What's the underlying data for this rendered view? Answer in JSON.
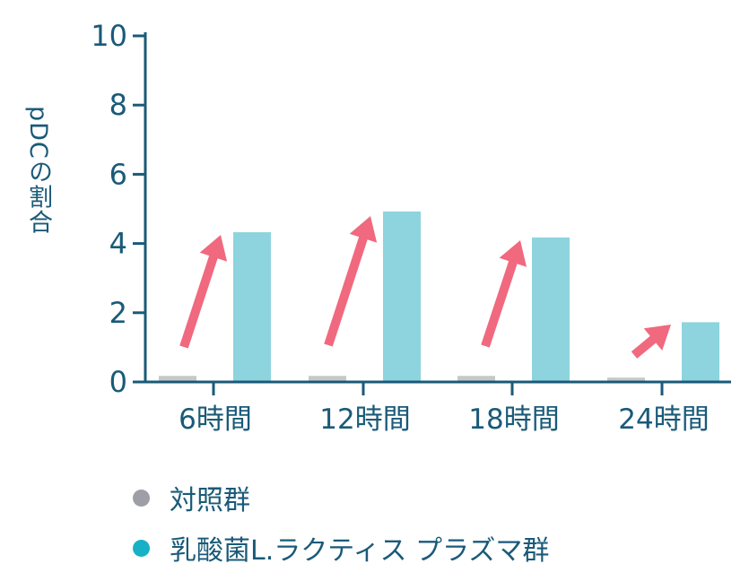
{
  "chart_data": {
    "type": "bar",
    "title": "",
    "xlabel": "",
    "ylabel": "pDCの割合",
    "ylim": [
      0,
      10
    ],
    "yticks": [
      0,
      2,
      4,
      6,
      8,
      10
    ],
    "grid": false,
    "legend_position": "bottom-left",
    "categories": [
      "6時間",
      "12時間",
      "18時間",
      "24時間"
    ],
    "series": [
      {
        "name": "対照群",
        "color": "#c8c8c8",
        "legend_color": "#9e9ea6",
        "values": [
          0.15,
          0.15,
          0.15,
          0.1
        ]
      },
      {
        "name": "乳酸菌L.ラクティス プラズマ群",
        "color": "#8dd4de",
        "legend_color": "#18b0c4",
        "values": [
          4.3,
          4.9,
          4.15,
          1.7
        ]
      }
    ],
    "annotations": [
      {
        "type": "arrow",
        "color": "#f0697e",
        "category": "6時間",
        "from": 1.0,
        "to": 4.3
      },
      {
        "type": "arrow",
        "color": "#f0697e",
        "category": "12時間",
        "from": 1.0,
        "to": 4.9
      },
      {
        "type": "arrow",
        "color": "#f0697e",
        "category": "18時間",
        "from": 1.0,
        "to": 4.2
      },
      {
        "type": "arrow",
        "color": "#f0697e",
        "category": "24時間",
        "from": 1.0,
        "to": 1.6
      }
    ]
  },
  "colors": {
    "axis": "#1a5a78",
    "arrow": "#f0697e"
  },
  "legend": {
    "items": [
      {
        "label": "対照群",
        "color": "#9e9ea6"
      },
      {
        "label": "乳酸菌L.ラクティス プラズマ群",
        "color": "#18b0c4"
      }
    ]
  }
}
